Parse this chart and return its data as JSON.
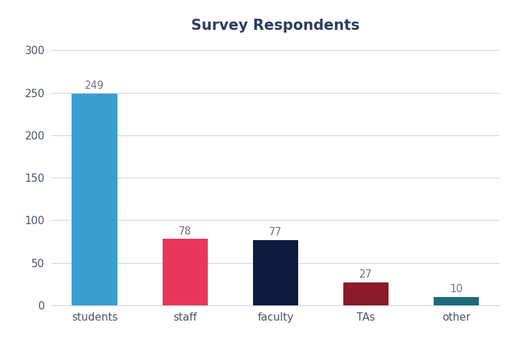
{
  "categories": [
    "students",
    "staff",
    "faculty",
    "TAs",
    "other"
  ],
  "values": [
    249,
    78,
    77,
    27,
    10
  ],
  "bar_colors": [
    "#3a9ed0",
    "#e8375a",
    "#0d1b3e",
    "#8b1a2a",
    "#1d6b7a"
  ],
  "title": "Survey Respondents",
  "title_fontsize": 15,
  "title_fontweight": "bold",
  "title_color": "#2c3e60",
  "ylim": [
    0,
    310
  ],
  "yticks": [
    0,
    50,
    100,
    150,
    200,
    250,
    300
  ],
  "bar_width": 0.5,
  "label_fontsize": 10.5,
  "tick_fontsize": 11,
  "tick_color": "#4a5568",
  "background_color": "#ffffff",
  "grid_color": "#d0d5e0",
  "annotation_color": "#6b7280"
}
